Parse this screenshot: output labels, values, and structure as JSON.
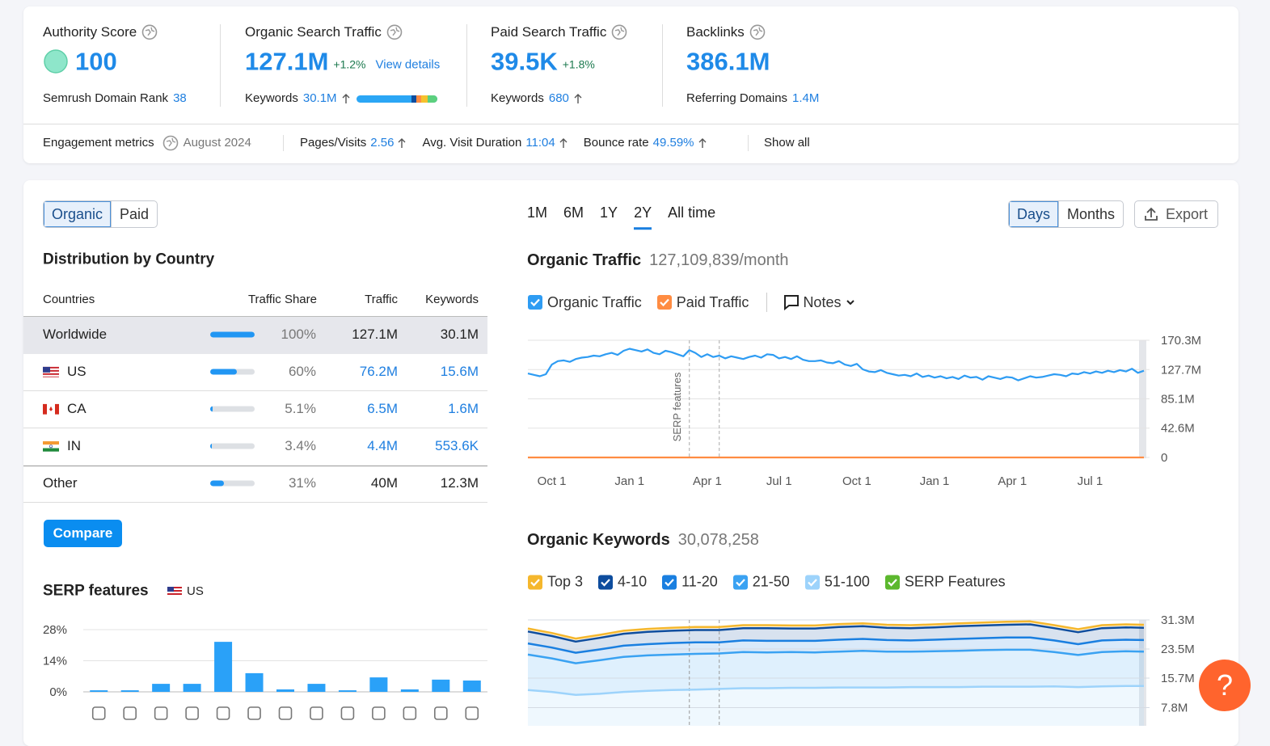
{
  "header": {
    "authority_score": {
      "label": "Authority Score",
      "value": "100",
      "rank_label": "Semrush Domain Rank",
      "rank_value": "38"
    },
    "organic_search_traffic": {
      "label": "Organic Search Traffic",
      "value": "127.1M",
      "change": "+1.2%",
      "link": "View details",
      "keywords_label": "Keywords",
      "keywords_value": "30.1M"
    },
    "paid_search_traffic": {
      "label": "Paid Search Traffic",
      "value": "39.5K",
      "change": "+1.8%",
      "keywords_label": "Keywords",
      "keywords_value": "680"
    },
    "backlinks": {
      "label": "Backlinks",
      "value": "386.1M",
      "domains_label": "Referring Domains",
      "domains_value": "1.4M"
    }
  },
  "engagement": {
    "label": "Engagement metrics",
    "period": "August 2024",
    "metrics": [
      {
        "label": "Pages/Visits",
        "value": "2.56"
      },
      {
        "label": "Avg. Visit Duration",
        "value": "11:04"
      },
      {
        "label": "Bounce rate",
        "value": "49.59%"
      }
    ],
    "link": "Show all"
  },
  "tabs": {
    "items": [
      "Organic",
      "Paid"
    ],
    "active": 0
  },
  "controls": {
    "ranges": [
      "1M",
      "6M",
      "1Y",
      "2Y",
      "All time"
    ],
    "active_range": 3,
    "granularity": [
      "Days",
      "Months"
    ],
    "active_granularity": 0,
    "export": "Export"
  },
  "distribution": {
    "title": "Distribution by Country",
    "columns": [
      "Countries",
      "Traffic Share",
      "Traffic",
      "Keywords"
    ],
    "rows": [
      {
        "country": "Worldwide",
        "share": 100,
        "share_label": "100%",
        "traffic": "127.1M",
        "keywords": "30.1M"
      },
      {
        "country": "US",
        "share": 60,
        "share_label": "60%",
        "traffic": "76.2M",
        "keywords": "15.6M"
      },
      {
        "country": "CA",
        "share": 5.1,
        "share_label": "5.1%",
        "traffic": "6.5M",
        "keywords": "1.6M"
      },
      {
        "country": "IN",
        "share": 3.4,
        "share_label": "3.4%",
        "traffic": "4.4M",
        "keywords": "553.6K"
      },
      {
        "country": "Other",
        "share": 31,
        "share_label": "31%",
        "traffic": "40M",
        "keywords": "12.3M"
      }
    ],
    "button": "Compare"
  },
  "help": "?",
  "chart_data": [
    {
      "type": "bar",
      "title": "SERP features",
      "country": "US",
      "values": [
        0.7,
        0.7,
        3.6,
        3.6,
        22.5,
        8.4,
        1.1,
        3.6,
        0.7,
        6.5,
        1.1,
        5.5,
        5.1
      ],
      "color": "#2aa1f8",
      "ylim": [
        0,
        28
      ],
      "yticks": [
        {
          "value": 0,
          "label": "0%"
        },
        {
          "value": 14,
          "label": "14%"
        },
        {
          "value": 28,
          "label": "28%"
        }
      ],
      "grid": true
    },
    {
      "type": "line",
      "title": "Organic Traffic",
      "subtitle": "127,109,839/month",
      "notes": "Notes",
      "series": [
        {
          "name": "Organic Traffic",
          "color": "#2e9cf3",
          "values": [
            122,
            120,
            118,
            121,
            135,
            140,
            141,
            139,
            143,
            145,
            146,
            148,
            147,
            150,
            152,
            149,
            155,
            158,
            156,
            154,
            157,
            152,
            150,
            155,
            153,
            150,
            147,
            156,
            152,
            146,
            150,
            146,
            148,
            144,
            147,
            145,
            143,
            146,
            148,
            145,
            150,
            149,
            144,
            146,
            143,
            147,
            142,
            140,
            140,
            141,
            138,
            137,
            140,
            135,
            133,
            136,
            128,
            125,
            124,
            127,
            123,
            121,
            119,
            120,
            118,
            122,
            117,
            119,
            116,
            118,
            115,
            117,
            114,
            119,
            116,
            117,
            113,
            118,
            116,
            114,
            117,
            116,
            112,
            115,
            118,
            116,
            117,
            119,
            121,
            120,
            118,
            122,
            121,
            124,
            122,
            125,
            123,
            126,
            124,
            127,
            125,
            129,
            123,
            126
          ]
        },
        {
          "name": "Paid Traffic",
          "color": "#ff8c42",
          "values": [
            0.0395,
            0.0395,
            0.0395,
            0.0395,
            0.0395,
            0.0395,
            0.0395,
            0.0395,
            0.0395,
            0.0395,
            0.0395,
            0.0395,
            0.0395,
            0.0395,
            0.0395,
            0.0395,
            0.0395,
            0.0395,
            0.0395,
            0.0395,
            0.0395,
            0.0395,
            0.0395,
            0.0395,
            0.0395,
            0.0395,
            0.0395,
            0.0395,
            0.0395,
            0.0395,
            0.0395,
            0.0395,
            0.0395,
            0.0395,
            0.0395,
            0.0395,
            0.0395,
            0.0395,
            0.0395,
            0.0395,
            0.0395,
            0.0395,
            0.0395,
            0.0395,
            0.0395,
            0.0395,
            0.0395,
            0.0395,
            0.0395,
            0.0395,
            0.0395,
            0.0395,
            0.0395,
            0.0395,
            0.0395,
            0.0395,
            0.0395,
            0.0395,
            0.0395,
            0.0395,
            0.0395,
            0.0395,
            0.0395,
            0.0395,
            0.0395,
            0.0395,
            0.0395,
            0.0395,
            0.0395,
            0.0395,
            0.0395,
            0.0395,
            0.0395,
            0.0395,
            0.0395,
            0.0395,
            0.0395,
            0.0395,
            0.0395,
            0.0395,
            0.0395,
            0.0395,
            0.0395,
            0.0395,
            0.0395,
            0.0395,
            0.0395,
            0.0395,
            0.0395,
            0.0395,
            0.0395,
            0.0395,
            0.0395,
            0.0395,
            0.0395,
            0.0395,
            0.0395,
            0.0395,
            0.0395,
            0.0395,
            0.0395,
            0.0395,
            0.0395,
            0.0395
          ]
        }
      ],
      "ylim": [
        0,
        170.3
      ],
      "yticks": [
        0,
        {
          "value": 42.6,
          "label": "42.6M"
        },
        {
          "value": 85.1,
          "label": "85.1M"
        },
        {
          "value": 127.7,
          "label": "127.7M"
        },
        {
          "value": 170.3,
          "label": "170.3M"
        }
      ],
      "xlim": [
        0,
        103
      ],
      "xticks": [
        {
          "value": 4,
          "label": "Oct 1"
        },
        {
          "value": 17,
          "label": "Jan 1"
        },
        {
          "value": 30,
          "label": "Apr 1"
        },
        {
          "value": 42,
          "label": "Jul 1"
        },
        {
          "value": 55,
          "label": "Oct 1"
        },
        {
          "value": 68,
          "label": "Jan 1"
        },
        {
          "value": 81,
          "label": "Apr 1"
        },
        {
          "value": 94,
          "label": "Jul 1"
        }
      ],
      "annotation": "SERP features",
      "markers": [
        27,
        32
      ],
      "grid": true
    },
    {
      "type": "area",
      "title": "Organic Keywords",
      "subtitle": "30,078,258",
      "x": [
        0,
        4,
        8,
        12,
        16,
        20,
        24,
        28,
        32,
        36,
        40,
        44,
        48,
        52,
        56,
        60,
        64,
        68,
        72,
        76,
        80,
        84,
        88,
        92,
        96,
        100,
        103
      ],
      "series": [
        {
          "name": "Top 3",
          "color": "#f5b72d",
          "values": [
            0.8,
            0.8,
            0.8,
            0.8,
            0.8,
            0.8,
            0.8,
            0.8,
            0.8,
            0.8,
            0.8,
            0.8,
            0.8,
            0.8,
            0.8,
            0.8,
            0.8,
            0.8,
            0.8,
            0.8,
            0.8,
            0.8,
            0.8,
            0.8,
            0.8,
            0.8,
            0.8
          ]
        },
        {
          "name": "4-10",
          "color": "#0e4d9e",
          "values": [
            3.2,
            3.1,
            3,
            3.1,
            3.2,
            3.3,
            3.3,
            3.3,
            3.3,
            3.3,
            3.4,
            3.3,
            3.3,
            3.4,
            3.4,
            3.3,
            3.3,
            3.3,
            3.4,
            3.4,
            3.4,
            3.5,
            3.3,
            3.2,
            3.3,
            3.3,
            3.3
          ]
        },
        {
          "name": "11-20",
          "color": "#1a7fe0",
          "values": [
            3,
            2.9,
            2.8,
            2.9,
            3,
            3,
            3.1,
            3.1,
            3,
            3.1,
            3.1,
            3,
            3.1,
            3.2,
            3.2,
            3.1,
            3,
            3.1,
            3.2,
            3.2,
            3.3,
            3.3,
            3.1,
            2.9,
            3.1,
            3.1,
            3.1
          ]
        },
        {
          "name": "21-50",
          "color": "#3aa2f2",
          "values": [
            9.5,
            9,
            8.5,
            9,
            9.4,
            9.5,
            9.5,
            9.6,
            9.5,
            9.7,
            9.6,
            9.6,
            9.5,
            9.6,
            9.8,
            9.6,
            9.5,
            9.6,
            9.7,
            9.8,
            9.9,
            9.9,
            9.2,
            8.6,
            9.2,
            9.3,
            9.2
          ]
        },
        {
          "name": "51-100",
          "color": "#9dd3fb",
          "values": [
            12.5,
            12,
            11.2,
            11.5,
            12,
            12.3,
            12.5,
            12.6,
            12.8,
            13,
            13,
            13.1,
            13.1,
            13.2,
            13.2,
            13.2,
            13.3,
            13.3,
            13.3,
            13.4,
            13.4,
            13.4,
            13.5,
            13.3,
            13.5,
            13.6,
            13.6
          ]
        }
      ],
      "legend_extra": {
        "name": "SERP Features",
        "color": "#5cb82e"
      },
      "ylim": [
        0,
        31.3
      ],
      "xlim": [
        0,
        103
      ],
      "yticks": [
        {
          "value": 7.8,
          "label": "7.8M"
        },
        {
          "value": 15.7,
          "label": "15.7M"
        },
        {
          "value": 23.5,
          "label": "23.5M"
        },
        {
          "value": 31.3,
          "label": "31.3M"
        }
      ],
      "markers": [
        27,
        32
      ],
      "grid": true
    }
  ]
}
